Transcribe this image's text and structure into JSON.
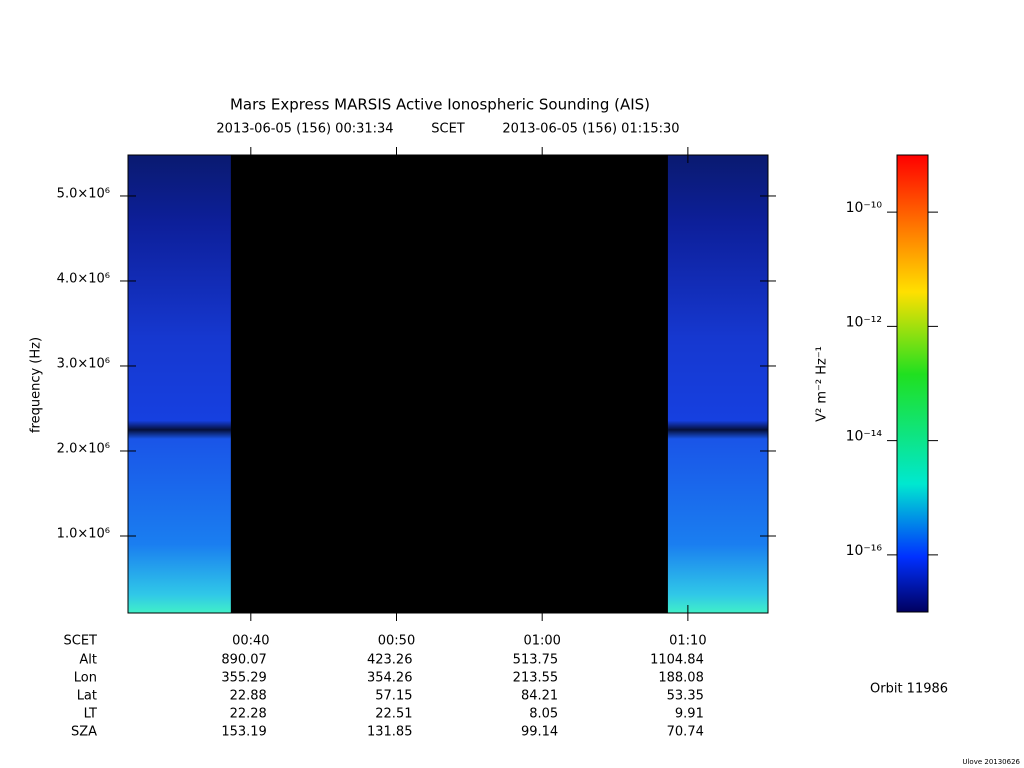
{
  "chart_data": {
    "type": "spectrogram",
    "title": "Mars Express MARSIS Active Ionospheric Sounding (AIS)",
    "subtitle_start": "2013-06-05 (156) 00:31:34",
    "subtitle_mid": "SCET",
    "subtitle_end": "2013-06-05 (156) 01:15:30",
    "ylabel": "frequency (Hz)",
    "xlim": [
      31.57,
      75.5
    ],
    "xticks": [
      {
        "value": 40,
        "label": "00:40"
      },
      {
        "value": 50,
        "label": "00:50"
      },
      {
        "value": 60,
        "label": "01:00"
      },
      {
        "value": 70,
        "label": "01:10"
      }
    ],
    "ylim": [
      94000,
      5482000
    ],
    "yticks": [
      {
        "value": 1000000,
        "label": "1.0×10⁶"
      },
      {
        "value": 2000000,
        "label": "2.0×10⁶"
      },
      {
        "value": 3000000,
        "label": "3.0×10⁶"
      },
      {
        "value": 4000000,
        "label": "4.0×10⁶"
      },
      {
        "value": 5000000,
        "label": "5.0×10⁶"
      }
    ],
    "segments": [
      [
        31.57,
        38.63
      ],
      [
        68.63,
        75.5
      ]
    ],
    "colorbar": {
      "label": "V² m⁻² Hz⁻¹",
      "log": true,
      "zlim": [
        1e-17,
        1e-09
      ],
      "ticks": [
        {
          "value": 1e-10,
          "label": "10⁻¹⁰"
        },
        {
          "value": 1e-12,
          "label": "10⁻¹²"
        },
        {
          "value": 1e-14,
          "label": "10⁻¹⁴"
        },
        {
          "value": 1e-16,
          "label": "10⁻¹⁶"
        }
      ]
    },
    "ephemeris": {
      "labels": [
        "SCET",
        "Alt",
        "Lon",
        "Lat",
        "LT",
        "SZA"
      ],
      "rows": [
        [
          890.07,
          423.26,
          513.75,
          1104.84
        ],
        [
          355.29,
          354.26,
          213.55,
          188.08
        ],
        [
          22.88,
          57.15,
          84.21,
          53.35
        ],
        [
          22.28,
          22.51,
          8.05,
          9.91
        ],
        [
          153.19,
          131.85,
          99.14,
          70.74
        ]
      ]
    },
    "orbit": "Orbit 11986",
    "footer": "Ulove 20130626"
  }
}
